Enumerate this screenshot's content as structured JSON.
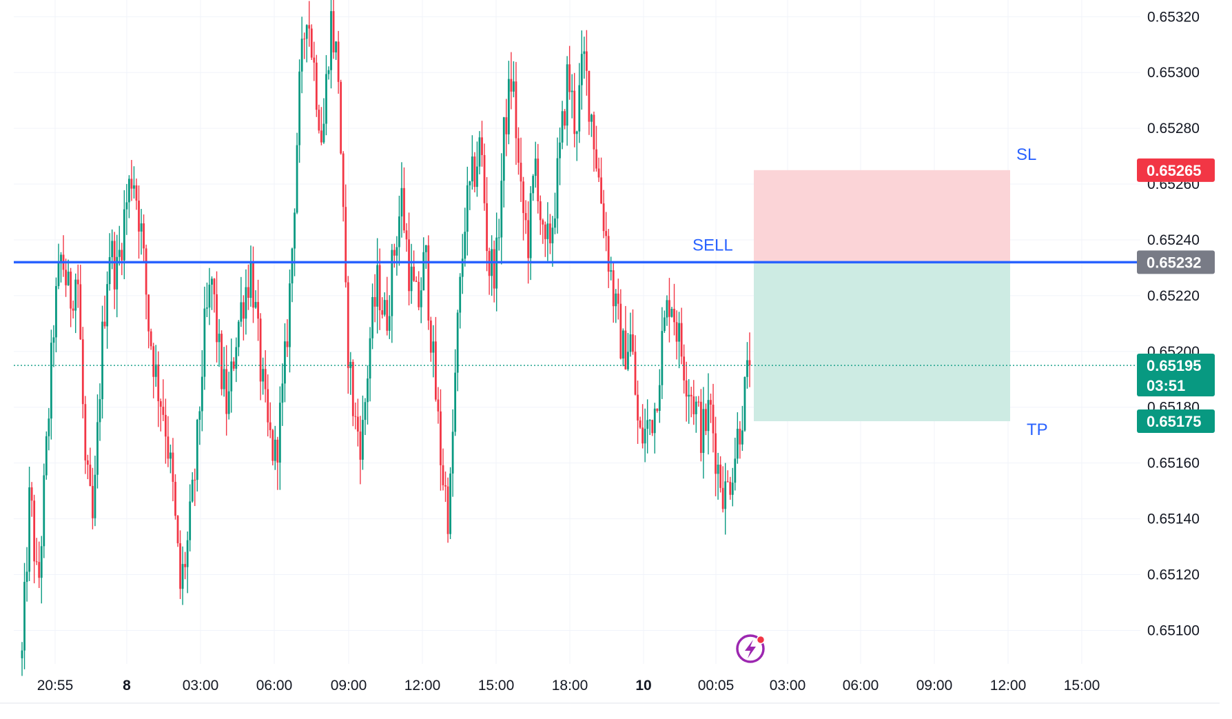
{
  "chart_data": {
    "type": "candlestick",
    "symbol_pair_price_precision": 5,
    "ylim": [
      0.65088,
      0.65326
    ],
    "y_ticks": [
      "0.65100",
      "0.65120",
      "0.65140",
      "0.65160",
      "0.65180",
      "0.65200",
      "0.65220",
      "0.65240",
      "0.65260",
      "0.65280",
      "0.65300",
      "0.65320"
    ],
    "x_tick_labels": [
      {
        "label": "20:55",
        "bold": false
      },
      {
        "label": "8",
        "bold": true
      },
      {
        "label": "03:00",
        "bold": false
      },
      {
        "label": "06:00",
        "bold": false
      },
      {
        "label": "09:00",
        "bold": false
      },
      {
        "label": "12:00",
        "bold": false
      },
      {
        "label": "15:00",
        "bold": false
      },
      {
        "label": "18:00",
        "bold": false
      },
      {
        "label": "10",
        "bold": true
      },
      {
        "label": "00:05",
        "bold": false
      },
      {
        "label": "03:00",
        "bold": false
      },
      {
        "label": "06:00",
        "bold": false
      },
      {
        "label": "09:00",
        "bold": false
      },
      {
        "label": "12:00",
        "bold": false
      },
      {
        "label": "15:00",
        "bold": false
      }
    ],
    "current_price": "0.65195",
    "countdown": "03:51",
    "sell_line": {
      "label": "SELL",
      "price": "0.65232"
    },
    "stop_loss": {
      "label": "SL",
      "price": "0.65265"
    },
    "take_profit": {
      "label": "TP",
      "price": "0.65175"
    },
    "candles_close_path": [
      0.6509,
      0.6515,
      0.65112,
      0.6516,
      0.6521,
      0.65235,
      0.65218,
      0.6523,
      0.65158,
      0.65136,
      0.65198,
      0.65238,
      0.65228,
      0.6525,
      0.65266,
      0.65245,
      0.6521,
      0.6519,
      0.65178,
      0.65152,
      0.65115,
      0.65132,
      0.6516,
      0.65205,
      0.65225,
      0.65196,
      0.65178,
      0.65205,
      0.6522,
      0.6523,
      0.65198,
      0.65172,
      0.65162,
      0.65185,
      0.65228,
      0.6529,
      0.65325,
      0.653,
      0.65275,
      0.6532,
      0.653,
      0.6521,
      0.65175,
      0.65168,
      0.65205,
      0.65225,
      0.6521,
      0.65235,
      0.65255,
      0.65228,
      0.65215,
      0.65235,
      0.65195,
      0.6516,
      0.6514,
      0.65205,
      0.65248,
      0.65262,
      0.65275,
      0.6523,
      0.65232,
      0.6528,
      0.653,
      0.65255,
      0.6524,
      0.6527,
      0.65232,
      0.65245,
      0.6527,
      0.653,
      0.6528,
      0.65305,
      0.65285,
      0.6526,
      0.65238,
      0.65215,
      0.652,
      0.65205,
      0.65168,
      0.65172,
      0.6518,
      0.65205,
      0.65222,
      0.65205,
      0.65192,
      0.65182,
      0.6517,
      0.6518,
      0.65158,
      0.65148,
      0.65162,
      0.65178,
      0.65195
    ],
    "colors": {
      "up": "#089981",
      "down": "#f23645",
      "sell_line": "#2962ff",
      "sl_zone": "#fbd4d7",
      "tp_zone": "#cdebe3",
      "sl_tag": "#f23645",
      "tp_tag": "#089981",
      "sell_tag": "#787b86",
      "grid": "#f0f3fa",
      "axis_text": "#131722",
      "label_text": "#2962ff"
    },
    "watermark_icon": "lightning-bolt-icon"
  }
}
